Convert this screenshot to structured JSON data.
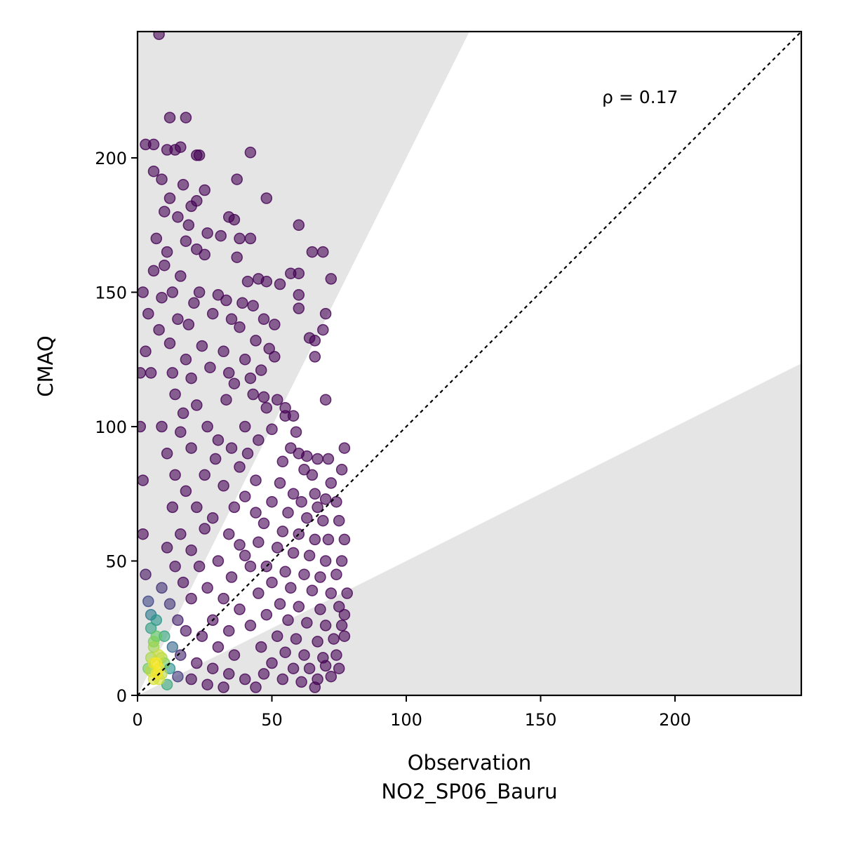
{
  "chart_data": {
    "type": "scatter",
    "title": "",
    "xlabel": "Observation",
    "xlabel_sub": "NO2_SP06_Bauru",
    "ylabel": "CMAQ",
    "xlim": [
      0,
      247
    ],
    "ylim": [
      0,
      247
    ],
    "xticks": [
      0,
      50,
      100,
      150,
      200
    ],
    "yticks": [
      0,
      50,
      100,
      150,
      200
    ],
    "grid": false,
    "annotation": "ρ = 0.17",
    "reference_line": {
      "label": "1:1",
      "style": "dotted",
      "color": "#000000"
    },
    "shaded_band": {
      "description": "outside factor-of-2 range",
      "factor": 2,
      "color": "#e5e5e5"
    },
    "colormap": [
      "#440154",
      "#3b528b",
      "#21918c",
      "#5ec962",
      "#fde725"
    ],
    "series": [
      {
        "points": [
          [
            8,
            246
          ],
          [
            12,
            215
          ],
          [
            18,
            215
          ],
          [
            3,
            205
          ],
          [
            6,
            205
          ],
          [
            16,
            204
          ],
          [
            11,
            203
          ],
          [
            14,
            203
          ],
          [
            23,
            201
          ],
          [
            22,
            201
          ],
          [
            42,
            202
          ],
          [
            6,
            195
          ],
          [
            9,
            192
          ],
          [
            37,
            192
          ],
          [
            17,
            190
          ],
          [
            12,
            185
          ],
          [
            22,
            184
          ],
          [
            48,
            185
          ],
          [
            20,
            182
          ],
          [
            25,
            188
          ],
          [
            10,
            180
          ],
          [
            15,
            178
          ],
          [
            34,
            178
          ],
          [
            36,
            177
          ],
          [
            19,
            175
          ],
          [
            26,
            172
          ],
          [
            60,
            175
          ],
          [
            31,
            171
          ],
          [
            38,
            170
          ],
          [
            42,
            170
          ],
          [
            18,
            169
          ],
          [
            22,
            166
          ],
          [
            25,
            164
          ],
          [
            65,
            165
          ],
          [
            69,
            165
          ],
          [
            37,
            163
          ],
          [
            57,
            157
          ],
          [
            60,
            157
          ],
          [
            45,
            155
          ],
          [
            41,
            154
          ],
          [
            48,
            154
          ],
          [
            53,
            153
          ],
          [
            72,
            155
          ],
          [
            60,
            149
          ],
          [
            60,
            144
          ],
          [
            30,
            149
          ],
          [
            33,
            147
          ],
          [
            39,
            146
          ],
          [
            43,
            145
          ],
          [
            70,
            142
          ],
          [
            28,
            142
          ],
          [
            35,
            140
          ],
          [
            47,
            140
          ],
          [
            51,
            138
          ],
          [
            38,
            137
          ],
          [
            69,
            136
          ],
          [
            64,
            133
          ],
          [
            66,
            132
          ],
          [
            44,
            132
          ],
          [
            49,
            129
          ],
          [
            32,
            128
          ],
          [
            51,
            126
          ],
          [
            40,
            125
          ],
          [
            66,
            126
          ],
          [
            46,
            121
          ],
          [
            34,
            120
          ],
          [
            42,
            118
          ],
          [
            36,
            116
          ],
          [
            43,
            112
          ],
          [
            47,
            111
          ],
          [
            52,
            110
          ],
          [
            70,
            110
          ],
          [
            48,
            107
          ],
          [
            55,
            107
          ],
          [
            55,
            104
          ],
          [
            58,
            104
          ],
          [
            40,
            100
          ],
          [
            50,
            99
          ],
          [
            59,
            98
          ],
          [
            45,
            95
          ],
          [
            57,
            92
          ],
          [
            60,
            90
          ],
          [
            63,
            89
          ],
          [
            67,
            88
          ],
          [
            77,
            92
          ],
          [
            71,
            88
          ],
          [
            54,
            87
          ],
          [
            62,
            84
          ],
          [
            65,
            82
          ],
          [
            76,
            84
          ],
          [
            44,
            80
          ],
          [
            53,
            79
          ],
          [
            66,
            75
          ],
          [
            72,
            79
          ],
          [
            58,
            75
          ],
          [
            61,
            72
          ],
          [
            67,
            70
          ],
          [
            70,
            73
          ],
          [
            74,
            72
          ],
          [
            50,
            72
          ],
          [
            56,
            68
          ],
          [
            63,
            66
          ],
          [
            69,
            65
          ],
          [
            75,
            65
          ],
          [
            47,
            64
          ],
          [
            54,
            61
          ],
          [
            60,
            60
          ],
          [
            66,
            58
          ],
          [
            71,
            58
          ],
          [
            77,
            58
          ],
          [
            45,
            57
          ],
          [
            52,
            55
          ],
          [
            58,
            53
          ],
          [
            64,
            52
          ],
          [
            70,
            50
          ],
          [
            76,
            50
          ],
          [
            40,
            52
          ],
          [
            48,
            48
          ],
          [
            55,
            46
          ],
          [
            62,
            45
          ],
          [
            68,
            44
          ],
          [
            74,
            45
          ],
          [
            50,
            42
          ],
          [
            57,
            40
          ],
          [
            65,
            39
          ],
          [
            72,
            38
          ],
          [
            78,
            38
          ],
          [
            45,
            38
          ],
          [
            53,
            34
          ],
          [
            60,
            33
          ],
          [
            68,
            32
          ],
          [
            75,
            33
          ],
          [
            77,
            30
          ],
          [
            48,
            30
          ],
          [
            56,
            28
          ],
          [
            63,
            27
          ],
          [
            70,
            26
          ],
          [
            76,
            26
          ],
          [
            42,
            26
          ],
          [
            52,
            22
          ],
          [
            59,
            21
          ],
          [
            67,
            20
          ],
          [
            73,
            21
          ],
          [
            77,
            22
          ],
          [
            46,
            18
          ],
          [
            55,
            16
          ],
          [
            62,
            15
          ],
          [
            69,
            14
          ],
          [
            74,
            15
          ],
          [
            50,
            12
          ],
          [
            58,
            10
          ],
          [
            64,
            10
          ],
          [
            70,
            11
          ],
          [
            75,
            10
          ],
          [
            47,
            8
          ],
          [
            54,
            6
          ],
          [
            61,
            5
          ],
          [
            67,
            6
          ],
          [
            72,
            7
          ],
          [
            66,
            3
          ],
          [
            2,
            150
          ],
          [
            4,
            142
          ],
          [
            6,
            158
          ],
          [
            8,
            136
          ],
          [
            3,
            128
          ],
          [
            5,
            120
          ],
          [
            9,
            148
          ],
          [
            12,
            131
          ],
          [
            15,
            140
          ],
          [
            18,
            125
          ],
          [
            20,
            118
          ],
          [
            24,
            130
          ],
          [
            27,
            122
          ],
          [
            14,
            112
          ],
          [
            17,
            105
          ],
          [
            22,
            108
          ],
          [
            26,
            100
          ],
          [
            30,
            95
          ],
          [
            33,
            110
          ],
          [
            29,
            88
          ],
          [
            35,
            92
          ],
          [
            38,
            85
          ],
          [
            41,
            90
          ],
          [
            25,
            82
          ],
          [
            32,
            78
          ],
          [
            36,
            70
          ],
          [
            40,
            74
          ],
          [
            44,
            68
          ],
          [
            28,
            66
          ],
          [
            34,
            60
          ],
          [
            38,
            56
          ],
          [
            42,
            48
          ],
          [
            30,
            50
          ],
          [
            35,
            44
          ],
          [
            26,
            40
          ],
          [
            32,
            36
          ],
          [
            38,
            32
          ],
          [
            28,
            28
          ],
          [
            34,
            24
          ],
          [
            24,
            22
          ],
          [
            30,
            18
          ],
          [
            36,
            15
          ],
          [
            22,
            12
          ],
          [
            28,
            10
          ],
          [
            34,
            8
          ],
          [
            40,
            6
          ],
          [
            20,
            6
          ],
          [
            26,
            4
          ],
          [
            32,
            3
          ],
          [
            44,
            3
          ],
          [
            10,
            160
          ],
          [
            13,
            150
          ],
          [
            7,
            170
          ],
          [
            11,
            165
          ],
          [
            16,
            156
          ],
          [
            21,
            146
          ],
          [
            19,
            138
          ],
          [
            23,
            150
          ],
          [
            13,
            120
          ],
          [
            16,
            98
          ],
          [
            20,
            92
          ],
          [
            9,
            100
          ],
          [
            11,
            90
          ],
          [
            14,
            82
          ],
          [
            18,
            76
          ],
          [
            22,
            70
          ],
          [
            25,
            62
          ],
          [
            13,
            70
          ],
          [
            16,
            60
          ],
          [
            20,
            54
          ],
          [
            23,
            48
          ],
          [
            11,
            55
          ],
          [
            14,
            48
          ],
          [
            17,
            42
          ],
          [
            20,
            36
          ],
          [
            9,
            40
          ],
          [
            12,
            34
          ],
          [
            15,
            28
          ],
          [
            18,
            24
          ],
          [
            7,
            28
          ],
          [
            10,
            22
          ],
          [
            13,
            18
          ],
          [
            16,
            15
          ],
          [
            6,
            18
          ],
          [
            9,
            14
          ],
          [
            12,
            10
          ],
          [
            15,
            7
          ],
          [
            5,
            9
          ],
          [
            8,
            6
          ],
          [
            11,
            4
          ],
          [
            1,
            120
          ],
          [
            1,
            100
          ],
          [
            2,
            80
          ],
          [
            2,
            60
          ],
          [
            3,
            45
          ],
          [
            4,
            35
          ],
          [
            5,
            25
          ],
          [
            6,
            12
          ],
          [
            7,
            8
          ],
          [
            8,
            10
          ],
          [
            6,
            6
          ],
          [
            7,
            12
          ],
          [
            8,
            15
          ],
          [
            5,
            14
          ],
          [
            4,
            10
          ],
          [
            9,
            8
          ],
          [
            10,
            12
          ],
          [
            6,
            20
          ],
          [
            7,
            22
          ],
          [
            5,
            30
          ]
        ]
      }
    ]
  }
}
